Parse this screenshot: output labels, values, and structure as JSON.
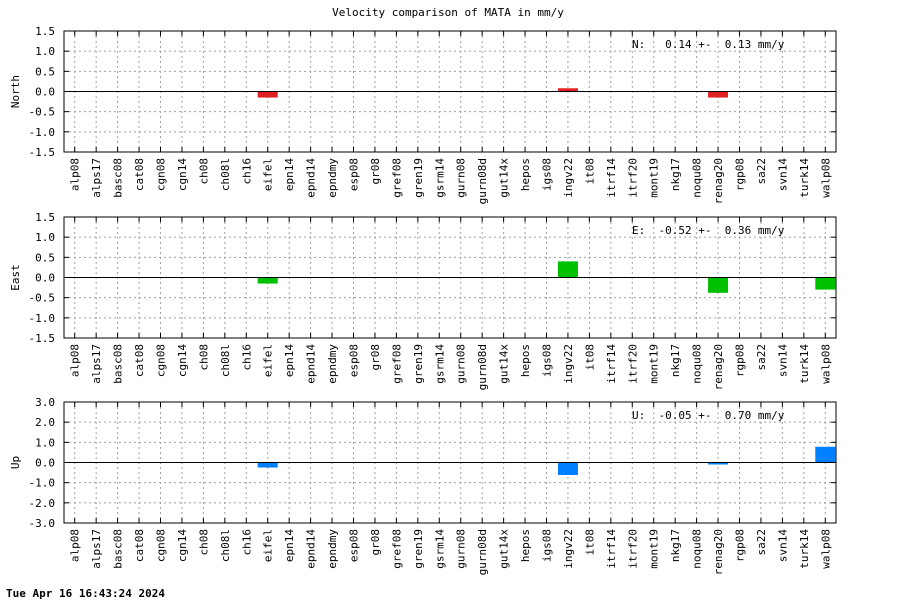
{
  "title": "Velocity comparison of MATA in mm/y",
  "footer": "Tue Apr 16 16:43:24 2024",
  "chart_data": [
    {
      "type": "bar",
      "ylabel": "North",
      "annotation": "N:   0.14 +-  0.13 mm/y",
      "ylim": [
        -1.5,
        1.5
      ],
      "yticks": [
        1.5,
        1.0,
        0.5,
        0.0,
        -0.5,
        -1.0,
        -1.5
      ],
      "ytick_labels": [
        "1.5",
        "1.0",
        "0.5",
        "0.0",
        "-0.5",
        "-1.0",
        "-1.5"
      ],
      "grid": true,
      "color": "#e02020",
      "categories": [
        "alp08",
        "alps17",
        "basc08",
        "cat08",
        "cgn08",
        "cgn14",
        "ch08",
        "ch08l",
        "ch16",
        "eifel",
        "epn14",
        "epnd14",
        "epndmy",
        "esp08",
        "gr08",
        "gref08",
        "gren19",
        "gsrm14",
        "gurn08",
        "gurn08d",
        "gut14x",
        "hepos",
        "igs08",
        "ingv22",
        "it08",
        "itrf14",
        "itrf20",
        "mont19",
        "nkg17",
        "noqu08",
        "renag20",
        "rgp08",
        "sa22",
        "svn14",
        "turk14",
        "walp08"
      ],
      "values": [
        null,
        null,
        null,
        null,
        null,
        null,
        null,
        null,
        null,
        -0.15,
        null,
        null,
        null,
        null,
        null,
        null,
        null,
        null,
        null,
        null,
        null,
        null,
        null,
        0.08,
        null,
        null,
        null,
        null,
        null,
        null,
        -0.15,
        null,
        null,
        null,
        null,
        null
      ]
    },
    {
      "type": "bar",
      "ylabel": "East",
      "annotation": "E:  -0.52 +-  0.36 mm/y",
      "ylim": [
        -1.5,
        1.5
      ],
      "yticks": [
        1.5,
        1.0,
        0.5,
        0.0,
        -0.5,
        -1.0,
        -1.5
      ],
      "ytick_labels": [
        "1.5",
        "1.0",
        "0.5",
        "0.0",
        "-0.5",
        "-1.0",
        "-1.5"
      ],
      "grid": true,
      "color": "#00c000",
      "categories": [
        "alp08",
        "alps17",
        "basc08",
        "cat08",
        "cgn08",
        "cgn14",
        "ch08",
        "ch08l",
        "ch16",
        "eifel",
        "epn14",
        "epnd14",
        "epndmy",
        "esp08",
        "gr08",
        "gref08",
        "gren19",
        "gsrm14",
        "gurn08",
        "gurn08d",
        "gut14x",
        "hepos",
        "igs08",
        "ingv22",
        "it08",
        "itrf14",
        "itrf20",
        "mont19",
        "nkg17",
        "noqu08",
        "renag20",
        "rgp08",
        "sa22",
        "svn14",
        "turk14",
        "walp08"
      ],
      "values": [
        null,
        null,
        null,
        null,
        null,
        null,
        null,
        null,
        null,
        -0.15,
        null,
        null,
        null,
        null,
        null,
        null,
        null,
        null,
        null,
        null,
        null,
        null,
        null,
        0.4,
        null,
        null,
        null,
        null,
        null,
        null,
        -0.38,
        null,
        null,
        null,
        null,
        -0.3
      ]
    },
    {
      "type": "bar",
      "ylabel": "Up",
      "annotation": "U:  -0.05 +-  0.70 mm/y",
      "ylim": [
        -3.0,
        3.0
      ],
      "yticks": [
        3.0,
        2.0,
        1.0,
        0.0,
        -1.0,
        -2.0,
        -3.0
      ],
      "ytick_labels": [
        "3.0",
        "2.0",
        "1.0",
        "0.0",
        "-1.0",
        "-2.0",
        "-3.0"
      ],
      "grid": true,
      "color": "#0080ff",
      "categories": [
        "alp08",
        "alps17",
        "basc08",
        "cat08",
        "cgn08",
        "cgn14",
        "ch08",
        "ch08l",
        "ch16",
        "eifel",
        "epn14",
        "epnd14",
        "epndmy",
        "esp08",
        "gr08",
        "gref08",
        "gren19",
        "gsrm14",
        "gurn08",
        "gurn08d",
        "gut14x",
        "hepos",
        "igs08",
        "ingv22",
        "it08",
        "itrf14",
        "itrf20",
        "mont19",
        "nkg17",
        "noqu08",
        "renag20",
        "rgp08",
        "sa22",
        "svn14",
        "turk14",
        "walp08"
      ],
      "values": [
        null,
        null,
        null,
        null,
        null,
        null,
        null,
        null,
        null,
        -0.25,
        null,
        null,
        null,
        null,
        null,
        null,
        null,
        null,
        null,
        null,
        null,
        null,
        null,
        -0.62,
        null,
        null,
        null,
        null,
        null,
        null,
        -0.08,
        null,
        null,
        null,
        null,
        0.78
      ]
    }
  ]
}
